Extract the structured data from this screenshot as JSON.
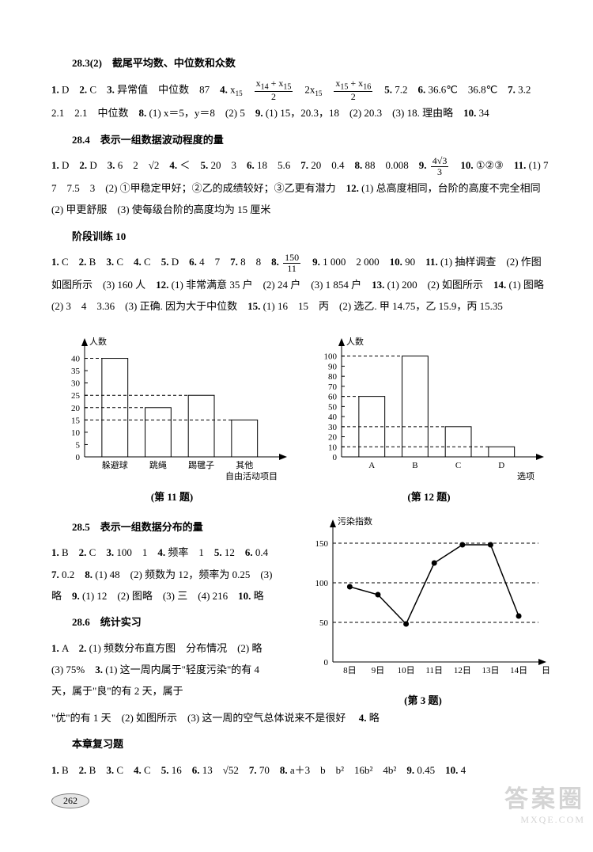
{
  "s1": {
    "title": "28.3(2)　截尾平均数、中位数和众数",
    "body_parts": [
      {
        "n": "1.",
        "t": "D　"
      },
      {
        "n": "2.",
        "t": "C　"
      },
      {
        "n": "3.",
        "t": "异常值　中位数　87　"
      },
      {
        "n": "4.",
        "t": ""
      },
      {
        "raw": "x",
        "sub": "15",
        "after": "　"
      },
      {
        "frac_n": "x<sub>14</sub> + x<sub>15</sub>",
        "frac_d": "2",
        "after": "　"
      },
      {
        "raw": "2x",
        "sub": "15",
        "after": "　"
      },
      {
        "frac_n": "x<sub>15</sub> + x<sub>16</sub>",
        "frac_d": "2",
        "after": "　"
      },
      {
        "n": "5.",
        "t": "7.2　"
      },
      {
        "n": "6.",
        "t": "36.6℃　36.8℃　"
      },
      {
        "n": "7.",
        "t": "3.2　2.1　2.1　中位数　"
      },
      {
        "n": "8.",
        "t": "(1) x＝5，y＝8　(2) 5　"
      },
      {
        "n": "9.",
        "t": "(1) 15，20.3，18　(2) 20.3　(3) 18. 理由略　"
      },
      {
        "n": "10.",
        "t": "34"
      }
    ]
  },
  "s2": {
    "title": "28.4　表示一组数据波动程度的量",
    "body_parts": [
      {
        "n": "1.",
        "t": "D　"
      },
      {
        "n": "2.",
        "t": "D　"
      },
      {
        "n": "3.",
        "t": "6　2　√2　"
      },
      {
        "n": "4.",
        "t": "＜　"
      },
      {
        "n": "5.",
        "t": "20　3　"
      },
      {
        "n": "6.",
        "t": "18　5.6　"
      },
      {
        "n": "7.",
        "t": "20　0.4　"
      },
      {
        "n": "8.",
        "t": "88　0.008　"
      },
      {
        "n": "9.",
        "t": ""
      },
      {
        "frac_n": "4√3",
        "frac_d": "3",
        "after": "　"
      },
      {
        "n": "10.",
        "t": "①②③　"
      },
      {
        "n": "11.",
        "t": "(1) 7　7　7.5　3　(2) ①甲稳定甲好；②乙的成绩较好；③乙更有潜力　"
      },
      {
        "n": "12.",
        "t": "(1) 总高度相同，台阶的高度不完全相同　(2) 甲更舒服　(3) 使每级台阶的高度均为 15 厘米"
      }
    ]
  },
  "s3": {
    "title": "阶段训练 10",
    "body_parts": [
      {
        "n": "1.",
        "t": "C　"
      },
      {
        "n": "2.",
        "t": "B　"
      },
      {
        "n": "3.",
        "t": "C　"
      },
      {
        "n": "4.",
        "t": "C　"
      },
      {
        "n": "5.",
        "t": "D　"
      },
      {
        "n": "6.",
        "t": "4　7　"
      },
      {
        "n": "7.",
        "t": "8　8　"
      },
      {
        "n": "8.",
        "t": ""
      },
      {
        "frac_n": "150",
        "frac_d": "11",
        "after": "　"
      },
      {
        "n": "9.",
        "t": "1 000　2 000　"
      },
      {
        "n": "10.",
        "t": "90　"
      },
      {
        "n": "11.",
        "t": "(1) 抽样调查　(2) 作图如图所示　(3) 160 人　"
      },
      {
        "n": "12.",
        "t": "(1) 非常满意 35 户　(2) 24 户　(3) 1 854 户　"
      },
      {
        "n": "13.",
        "t": "(1) 200　(2) 如图所示　"
      },
      {
        "n": "14.",
        "t": "(1) 图略　(2) 3　4　3.36　(3) 正确. 因为大于中位数　"
      },
      {
        "n": "15.",
        "t": "(1) 16　15　丙　(2) 选乙. 甲 14.75，乙 15.9，丙 15.35"
      }
    ]
  },
  "chart11": {
    "caption": "(第 11 题)",
    "ylabel": "人数",
    "xlabel": "自由活动项目",
    "yticks": [
      0,
      5,
      10,
      15,
      20,
      25,
      30,
      35,
      40
    ],
    "ylim": [
      0,
      45
    ],
    "categories": [
      "躲避球",
      "跳绳",
      "踢毽子",
      "其他"
    ],
    "values": [
      40,
      20,
      25,
      15
    ],
    "bar_fill": "#ffffff",
    "bar_stroke": "#000000",
    "grid_dash": "4,3",
    "axis_color": "#000000",
    "label_fontsize": 11
  },
  "chart12": {
    "caption": "(第 12 题)",
    "ylabel": "人数",
    "xlabel": "选项",
    "yticks": [
      0,
      10,
      20,
      30,
      40,
      50,
      60,
      70,
      80,
      90,
      100
    ],
    "ylim": [
      0,
      110
    ],
    "categories": [
      "A",
      "B",
      "C",
      "D"
    ],
    "values": [
      60,
      100,
      30,
      10
    ],
    "bar_fill": "#ffffff",
    "bar_stroke": "#000000",
    "grid_dash": "4,3",
    "axis_color": "#000000",
    "label_fontsize": 11
  },
  "s4": {
    "title": "28.5　表示一组数据分布的量",
    "body_parts": [
      {
        "n": "1.",
        "t": "B　"
      },
      {
        "n": "2.",
        "t": "C　"
      },
      {
        "n": "3.",
        "t": "100　1　"
      },
      {
        "n": "4.",
        "t": "频率　1　"
      },
      {
        "n": "5.",
        "t": "12　"
      },
      {
        "n": "6.",
        "t": "0.4　"
      },
      {
        "n": "7.",
        "t": "0.2　"
      },
      {
        "n": "8.",
        "t": "(1) 48　(2) 频数为 12，频率为 0.25　(3) 略　"
      },
      {
        "n": "9.",
        "t": "(1) 12　(2) 图略　(3) 三　(4) 216　"
      },
      {
        "n": "10.",
        "t": "略"
      }
    ]
  },
  "s5": {
    "title": "28.6　统计实习",
    "body_parts": [
      {
        "n": "1.",
        "t": "A　"
      },
      {
        "n": "2.",
        "t": "(1) 频数分布直方图　分布情况　(2) 略　(3) 75%　"
      },
      {
        "n": "3.",
        "t": "(1) 这一周内属于\"轻度污染\"的有 4 天，属于\"良\"的有 2 天，属于"
      }
    ]
  },
  "s5_tail": "\"优\"的有 1 天　(2) 如图所示　(3) 这一周的空气总体说来不是很好　",
  "s5_tail_num": "4.",
  "s5_tail_after": "略",
  "chart3": {
    "caption": "(第 3 题)",
    "ylabel": "污染指数",
    "xlabel": "日期",
    "xticks": [
      "8日",
      "9日",
      "10日",
      "11日",
      "12日",
      "13日",
      "14日"
    ],
    "yticks": [
      0,
      50,
      100,
      150
    ],
    "ylim": [
      0,
      170
    ],
    "values": [
      95,
      85,
      48,
      125,
      148,
      148,
      58
    ],
    "line_color": "#000000",
    "marker_fill": "#000000",
    "marker_r": 3.5,
    "grid_dash": "4,3",
    "axis_color": "#000000",
    "label_fontsize": 11
  },
  "s6": {
    "title": "本章复习题",
    "body_parts": [
      {
        "n": "1.",
        "t": "B　"
      },
      {
        "n": "2.",
        "t": "B　"
      },
      {
        "n": "3.",
        "t": "C　"
      },
      {
        "n": "4.",
        "t": "C　"
      },
      {
        "n": "5.",
        "t": "16　"
      },
      {
        "n": "6.",
        "t": "13　√52　"
      },
      {
        "n": "7.",
        "t": "70　"
      },
      {
        "n": "8.",
        "t": "a＋3　b　b²　16b²　4b²　"
      },
      {
        "n": "9.",
        "t": "0.45　"
      },
      {
        "n": "10.",
        "t": "4"
      }
    ]
  },
  "page_number": "262",
  "watermark": {
    "big": "答案圈",
    "small": "MXQE.COM"
  }
}
